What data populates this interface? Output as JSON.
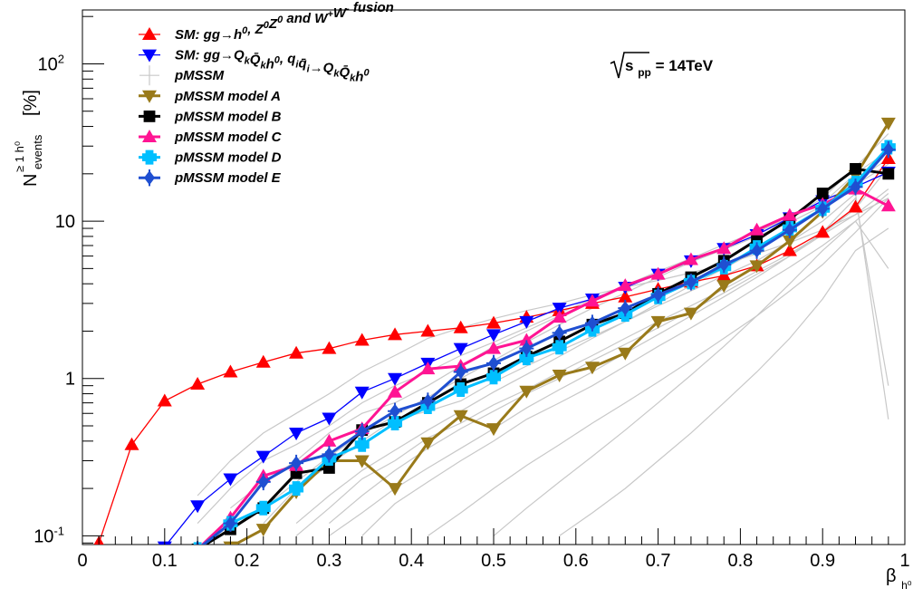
{
  "chart_data": {
    "type": "line",
    "xlabel": "β",
    "xlabel_sub": "h⁰",
    "ylabel": "N",
    "ylabel_sup": "≥ 1 h⁰",
    "ylabel_sub": "events",
    "ylabel_unit": "[%]",
    "annotation": {
      "prefix": "s",
      "sub": "pp",
      "rest": " = 14TeV"
    },
    "xlim": [
      0,
      1
    ],
    "ylim": [
      0.088,
      220
    ],
    "yscale": "log",
    "x_ticks": [
      {
        "value": 0,
        "label": "0"
      },
      {
        "value": 0.1,
        "label": "0.1"
      },
      {
        "value": 0.2,
        "label": "0.2"
      },
      {
        "value": 0.3,
        "label": "0.3"
      },
      {
        "value": 0.4,
        "label": "0.4"
      },
      {
        "value": 0.5,
        "label": "0.5"
      },
      {
        "value": 0.6,
        "label": "0.6"
      },
      {
        "value": 0.7,
        "label": "0.7"
      },
      {
        "value": 0.8,
        "label": "0.8"
      },
      {
        "value": 0.9,
        "label": "0.9"
      },
      {
        "value": 1.0,
        "label": "1"
      }
    ],
    "y_ticks": [
      {
        "value": 0.1,
        "label": "10",
        "sup": "-1"
      },
      {
        "value": 1,
        "label": "1",
        "sup": ""
      },
      {
        "value": 10,
        "label": "10",
        "sup": ""
      },
      {
        "value": 100,
        "label": "10",
        "sup": "2"
      }
    ],
    "legend": {
      "placement": "top-left",
      "entries": [
        {
          "series": "sm1",
          "color": "#ff0000",
          "marker": "triangle-up",
          "parts": [
            [
              "SM: gg→h",
              ""
            ],
            [
              "0",
              "sup"
            ],
            [
              ", Z",
              ""
            ],
            [
              "0",
              "sup"
            ],
            [
              "Z",
              ""
            ],
            [
              "0",
              "sup"
            ],
            [
              " and W",
              ""
            ],
            [
              "+",
              "sup"
            ],
            [
              "W",
              ""
            ],
            [
              "-",
              "sup"
            ],
            [
              " fusion",
              ""
            ]
          ]
        },
        {
          "series": "sm2",
          "color": "#0000ff",
          "marker": "triangle-down",
          "parts": [
            [
              "SM: gg→Q",
              ""
            ],
            [
              "k",
              "sub"
            ],
            [
              "Q̄",
              ""
            ],
            [
              "k",
              "sub"
            ],
            [
              "h",
              ""
            ],
            [
              "0",
              "sup"
            ],
            [
              ", q",
              ""
            ],
            [
              "i",
              "sub"
            ],
            [
              "q̄",
              ""
            ],
            [
              "i",
              "sub"
            ],
            [
              "→Q",
              ""
            ],
            [
              "k",
              "sub"
            ],
            [
              "Q̄",
              ""
            ],
            [
              "k",
              "sub"
            ],
            [
              "h",
              ""
            ],
            [
              "0",
              "sup"
            ]
          ]
        },
        {
          "series": "pmssm",
          "color": "#c8c8c8",
          "marker": "cross",
          "parts": [
            [
              "pMSSM",
              ""
            ]
          ]
        },
        {
          "series": "A",
          "color": "#997a1a",
          "marker": "triangle-down",
          "parts": [
            [
              "pMSSM model A",
              ""
            ]
          ]
        },
        {
          "series": "B",
          "color": "#000000",
          "marker": "square",
          "parts": [
            [
              "pMSSM model B",
              ""
            ]
          ]
        },
        {
          "series": "C",
          "color": "#ff1493",
          "marker": "triangle-up",
          "parts": [
            [
              "pMSSM model C",
              ""
            ]
          ]
        },
        {
          "series": "D",
          "color": "#00bfff",
          "marker": "cross",
          "parts": [
            [
              "pMSSM model D",
              ""
            ]
          ]
        },
        {
          "series": "E",
          "color": "#1f4fd1",
          "marker": "diamond-cross",
          "parts": [
            [
              "pMSSM model E",
              ""
            ]
          ]
        }
      ]
    },
    "series": [
      {
        "id": "sm1",
        "color": "#ff0000",
        "marker": "triangle-up",
        "stroke": 1.3,
        "x": [
          0.02,
          0.06,
          0.1,
          0.14,
          0.18,
          0.22,
          0.26,
          0.3,
          0.34,
          0.38,
          0.42,
          0.46,
          0.5,
          0.54,
          0.58,
          0.62,
          0.66,
          0.7,
          0.74,
          0.78,
          0.82,
          0.86,
          0.9,
          0.94,
          0.98
        ],
        "y": [
          0.09,
          0.38,
          0.72,
          0.92,
          1.1,
          1.27,
          1.45,
          1.55,
          1.75,
          1.9,
          2.0,
          2.1,
          2.25,
          2.45,
          2.7,
          3.0,
          3.3,
          3.7,
          4.1,
          4.5,
          5.2,
          6.5,
          8.5,
          12.3,
          25
        ]
      },
      {
        "id": "sm2",
        "color": "#0000ff",
        "marker": "triangle-down",
        "stroke": 1.3,
        "x": [
          0.1,
          0.14,
          0.18,
          0.22,
          0.26,
          0.3,
          0.34,
          0.38,
          0.42,
          0.46,
          0.5,
          0.54,
          0.58,
          0.62,
          0.66,
          0.7,
          0.74,
          0.78,
          0.82,
          0.86,
          0.9,
          0.94,
          0.98
        ],
        "y": [
          0.085,
          0.155,
          0.23,
          0.32,
          0.45,
          0.56,
          0.82,
          1.0,
          1.25,
          1.55,
          1.9,
          2.3,
          2.8,
          3.2,
          3.8,
          4.6,
          5.6,
          6.7,
          8.2,
          10.5,
          13.5,
          16.5,
          20.5
        ]
      },
      {
        "id": "A",
        "color": "#997a1a",
        "marker": "triangle-down",
        "stroke": 3,
        "x": [
          0.18,
          0.22,
          0.26,
          0.3,
          0.34,
          0.38,
          0.42,
          0.46,
          0.5,
          0.54,
          0.58,
          0.62,
          0.66,
          0.7,
          0.74,
          0.78,
          0.82,
          0.86,
          0.9,
          0.94,
          0.98
        ],
        "y": [
          0.085,
          0.11,
          0.19,
          0.3,
          0.3,
          0.2,
          0.39,
          0.58,
          0.48,
          0.83,
          1.05,
          1.18,
          1.45,
          2.3,
          2.6,
          3.9,
          5.2,
          7.5,
          11.5,
          19.5,
          42
        ]
      },
      {
        "id": "B",
        "color": "#000000",
        "marker": "square",
        "stroke": 3,
        "x": [
          0.14,
          0.18,
          0.22,
          0.26,
          0.3,
          0.34,
          0.38,
          0.42,
          0.46,
          0.5,
          0.54,
          0.58,
          0.62,
          0.66,
          0.7,
          0.74,
          0.78,
          0.82,
          0.86,
          0.9,
          0.94,
          0.98
        ],
        "y": [
          0.082,
          0.11,
          0.15,
          0.25,
          0.27,
          0.47,
          0.53,
          0.7,
          0.92,
          1.08,
          1.38,
          1.72,
          2.2,
          2.6,
          3.45,
          4.4,
          5.6,
          7.6,
          10.3,
          15,
          21.5,
          20
        ]
      },
      {
        "id": "C",
        "color": "#ff1493",
        "marker": "triangle-up",
        "stroke": 3,
        "x": [
          0.14,
          0.18,
          0.22,
          0.26,
          0.3,
          0.34,
          0.38,
          0.42,
          0.46,
          0.5,
          0.54,
          0.58,
          0.62,
          0.66,
          0.7,
          0.74,
          0.78,
          0.82,
          0.86,
          0.9,
          0.94,
          0.98
        ],
        "y": [
          0.082,
          0.13,
          0.24,
          0.28,
          0.4,
          0.48,
          0.82,
          1.15,
          1.2,
          1.55,
          1.75,
          2.45,
          3.1,
          3.9,
          4.6,
          5.7,
          6.7,
          8.8,
          10.9,
          12.8,
          16,
          12.5
        ]
      },
      {
        "id": "D",
        "color": "#00bfff",
        "marker": "cross",
        "stroke": 3,
        "x": [
          0.14,
          0.18,
          0.22,
          0.26,
          0.3,
          0.34,
          0.38,
          0.42,
          0.46,
          0.5,
          0.54,
          0.58,
          0.62,
          0.66,
          0.7,
          0.74,
          0.78,
          0.82,
          0.86,
          0.9,
          0.94,
          0.98
        ],
        "y": [
          0.082,
          0.12,
          0.15,
          0.2,
          0.31,
          0.38,
          0.52,
          0.66,
          0.85,
          1.02,
          1.35,
          1.58,
          2.05,
          2.55,
          3.3,
          4.1,
          5.1,
          6.8,
          9.0,
          12.0,
          17.5,
          29.5
        ]
      },
      {
        "id": "E",
        "color": "#1f4fd1",
        "marker": "diamond-cross",
        "stroke": 3,
        "x": [
          0.14,
          0.18,
          0.22,
          0.26,
          0.3,
          0.34,
          0.38,
          0.42,
          0.46,
          0.5,
          0.54,
          0.58,
          0.62,
          0.66,
          0.7,
          0.74,
          0.78,
          0.82,
          0.86,
          0.9,
          0.94,
          0.98
        ],
        "y": [
          0.082,
          0.12,
          0.22,
          0.29,
          0.33,
          0.46,
          0.62,
          0.72,
          1.1,
          1.25,
          1.55,
          1.95,
          2.25,
          2.8,
          3.4,
          4.1,
          5.3,
          6.5,
          8.8,
          12.0,
          16.5,
          28.5
        ]
      }
    ],
    "pmssm_models": {
      "color": "#c8c8c8",
      "x": [
        0.02,
        0.06,
        0.1,
        0.14,
        0.18,
        0.22,
        0.26,
        0.3,
        0.34,
        0.38,
        0.42,
        0.46,
        0.5,
        0.54,
        0.58,
        0.62,
        0.66,
        0.7,
        0.74,
        0.78,
        0.82,
        0.86,
        0.9,
        0.94,
        0.98
      ],
      "curves": [
        [
          null,
          null,
          null,
          0.18,
          0.3,
          0.45,
          0.6,
          0.8,
          1.1,
          1.4,
          1.8,
          2.1,
          2.4,
          2.7,
          3.0,
          3.4,
          3.8,
          4.2,
          4.7,
          5.3,
          6.2,
          7.3,
          8.8,
          11,
          14
        ],
        [
          null,
          null,
          null,
          null,
          0.15,
          0.22,
          0.3,
          0.45,
          0.6,
          0.7,
          0.9,
          1.2,
          1.6,
          2.0,
          2.5,
          3.1,
          3.8,
          4.6,
          5.5,
          6.6,
          8.0,
          9.8,
          12.5,
          17,
          23
        ],
        [
          null,
          null,
          null,
          null,
          null,
          0.12,
          0.2,
          0.28,
          0.4,
          0.55,
          0.62,
          0.72,
          0.95,
          1.2,
          1.5,
          1.85,
          2.3,
          2.9,
          3.6,
          4.5,
          5.6,
          7.4,
          10,
          15,
          0.55
        ],
        [
          null,
          null,
          null,
          null,
          null,
          null,
          0.1,
          0.15,
          0.23,
          0.3,
          0.42,
          0.52,
          0.68,
          0.85,
          1.1,
          1.4,
          1.8,
          2.3,
          2.9,
          3.7,
          4.8,
          6.2,
          8.3,
          12,
          22
        ],
        [
          null,
          null,
          null,
          null,
          null,
          null,
          null,
          0.12,
          0.18,
          0.26,
          0.36,
          0.48,
          0.62,
          0.8,
          1.0,
          1.3,
          1.65,
          2.1,
          2.7,
          3.5,
          4.6,
          6.0,
          8.2,
          11,
          16
        ],
        [
          null,
          null,
          null,
          null,
          null,
          null,
          null,
          null,
          0.1,
          0.16,
          0.22,
          0.3,
          0.4,
          0.55,
          0.7,
          0.9,
          1.2,
          1.6,
          2.1,
          2.8,
          3.8,
          5.1,
          7.0,
          10,
          15
        ],
        [
          null,
          null,
          null,
          null,
          null,
          null,
          null,
          null,
          null,
          null,
          0.1,
          0.14,
          0.2,
          0.28,
          0.38,
          0.52,
          0.7,
          0.95,
          1.3,
          1.8,
          2.5,
          3.6,
          5.3,
          8.5,
          14
        ],
        [
          null,
          null,
          null,
          null,
          null,
          null,
          null,
          null,
          null,
          null,
          null,
          null,
          null,
          null,
          0.1,
          0.14,
          0.2,
          0.3,
          0.45,
          0.7,
          1.1,
          1.8,
          3.2,
          6.5,
          9
        ],
        [
          null,
          null,
          null,
          0.12,
          0.2,
          0.3,
          0.38,
          0.5,
          0.7,
          0.9,
          1.1,
          1.4,
          1.7,
          2.1,
          2.6,
          3.2,
          3.9,
          4.8,
          5.8,
          7.1,
          8.6,
          10.5,
          13,
          20,
          28
        ],
        [
          null,
          null,
          null,
          null,
          null,
          0.15,
          0.22,
          0.32,
          0.44,
          0.58,
          0.76,
          1.0,
          1.3,
          1.7,
          2.2,
          2.8,
          3.5,
          4.4,
          5.5,
          6.8,
          8.5,
          10.5,
          14,
          22,
          36
        ],
        [
          null,
          null,
          null,
          null,
          null,
          null,
          null,
          0.1,
          0.14,
          0.2,
          0.27,
          0.36,
          0.48,
          0.65,
          0.85,
          1.1,
          1.45,
          1.9,
          2.5,
          3.3,
          4.4,
          6.0,
          8.5,
          14,
          0.9
        ],
        [
          null,
          null,
          null,
          null,
          null,
          null,
          0.12,
          0.18,
          0.26,
          0.35,
          0.47,
          0.62,
          0.82,
          1.06,
          1.38,
          1.8,
          2.3,
          3.0,
          3.9,
          5.0,
          6.5,
          8.6,
          12,
          18,
          25
        ],
        [
          null,
          null,
          null,
          null,
          null,
          null,
          null,
          null,
          null,
          null,
          null,
          null,
          0.1,
          0.15,
          0.22,
          0.32,
          0.47,
          0.7,
          1.05,
          1.6,
          2.5,
          4.0,
          6.5,
          10,
          5
        ]
      ]
    }
  }
}
